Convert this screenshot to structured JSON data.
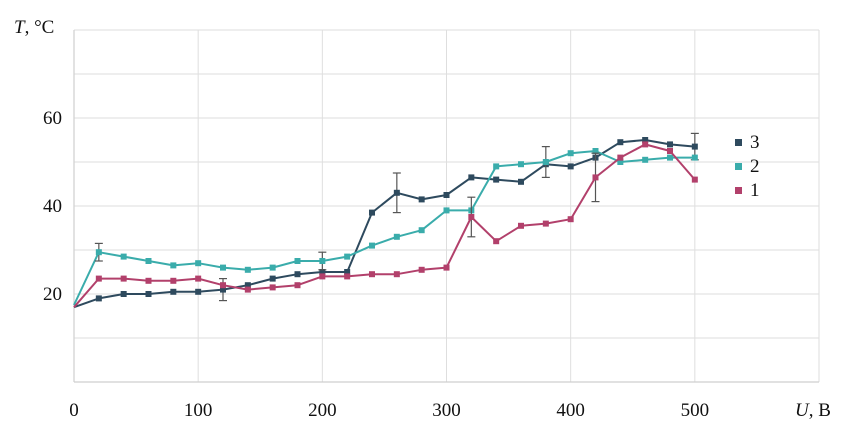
{
  "chart_data": {
    "type": "line",
    "title": "",
    "xlabel": "U, В",
    "ylabel": "T, °C",
    "xlim": [
      0,
      600
    ],
    "ylim": [
      0,
      80
    ],
    "xticks": [
      0,
      100,
      200,
      300,
      400,
      500
    ],
    "yticks": [
      20,
      40,
      60
    ],
    "grid": true,
    "legend_position": "right",
    "series": [
      {
        "name": "3",
        "color": "#2e4a5e",
        "x": [
          0,
          20,
          40,
          60,
          80,
          100,
          120,
          140,
          160,
          180,
          200,
          220,
          240,
          260,
          280,
          300,
          320,
          340,
          360,
          380,
          400,
          420,
          440,
          460,
          480,
          500
        ],
        "y": [
          17,
          19,
          20,
          20,
          20.5,
          20.5,
          21,
          22,
          23.5,
          24.5,
          25,
          25,
          38.5,
          43,
          41.5,
          42.5,
          46.5,
          46,
          45.5,
          49.5,
          49,
          51,
          54.5,
          55,
          54,
          53.5
        ],
        "errors": {
          "120": 2.5,
          "260": 4.5,
          "500": 3
        }
      },
      {
        "name": "2",
        "color": "#3aacab",
        "x": [
          0,
          20,
          40,
          60,
          80,
          100,
          120,
          140,
          160,
          180,
          200,
          220,
          240,
          260,
          280,
          300,
          320,
          340,
          360,
          380,
          400,
          420,
          440,
          460,
          480,
          500
        ],
        "y": [
          17.5,
          29.5,
          28.5,
          27.5,
          26.5,
          27,
          26,
          25.5,
          26,
          27.5,
          27.5,
          28.5,
          31,
          33,
          34.5,
          39,
          39,
          49,
          49.5,
          50,
          52,
          52.5,
          50,
          50.5,
          51,
          51
        ],
        "errors": {
          "20": 2,
          "200": 2,
          "380": 3.5
        }
      },
      {
        "name": "1",
        "color": "#b2406b",
        "x": [
          0,
          20,
          40,
          60,
          80,
          100,
          120,
          140,
          160,
          180,
          200,
          220,
          240,
          260,
          280,
          300,
          320,
          340,
          360,
          380,
          400,
          420,
          440,
          460,
          480,
          500
        ],
        "y": [
          17,
          23.5,
          23.5,
          23,
          23,
          23.5,
          22,
          21,
          21.5,
          22,
          24,
          24,
          24.5,
          24.5,
          25.5,
          26,
          37.5,
          32,
          35.5,
          36,
          37,
          46.5,
          51,
          54,
          52.5,
          46
        ],
        "errors": {
          "320": 4.5,
          "420": 5.5
        }
      }
    ]
  }
}
